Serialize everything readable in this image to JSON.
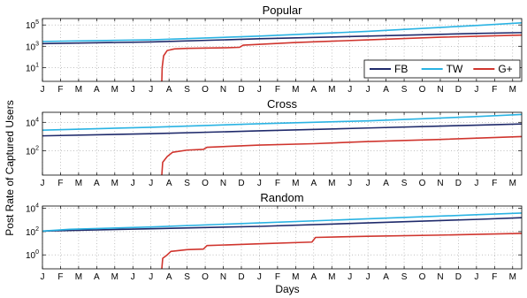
{
  "chart_data": {
    "type": "line",
    "ylabel": "Post Rate of Captured Users",
    "xlabel": "Days",
    "x_tick_labels": [
      "J",
      "F",
      "M",
      "A",
      "M",
      "J",
      "J",
      "A",
      "S",
      "O",
      "N",
      "D",
      "J",
      "F",
      "M",
      "A",
      "M",
      "J",
      "J",
      "A",
      "S",
      "O",
      "N",
      "D",
      "J",
      "F",
      "M"
    ],
    "grid": true,
    "y_scale": "log",
    "legend": {
      "placement": "bottom-right of first panel",
      "entries": [
        "FB",
        "TW",
        "G+"
      ]
    },
    "colors": {
      "FB": "#1f2a6b",
      "TW": "#2ab3e3",
      "G+": "#d0352e"
    },
    "panels": [
      {
        "title": "Popular",
        "ylim_exp": [
          -0.3,
          5.6
        ],
        "y_tick_exps": [
          1,
          3,
          5
        ],
        "y_tick_labels": [
          "10",
          "10",
          "10"
        ],
        "y_tick_exp_labels": [
          "1",
          "3",
          "5"
        ],
        "series": [
          {
            "name": "FB",
            "points": [
              [
                0,
                3.25
              ],
              [
                6,
                3.4
              ],
              [
                12,
                3.7
              ],
              [
                18,
                3.95
              ],
              [
                24,
                4.2
              ],
              [
                26.5,
                4.28
              ]
            ]
          },
          {
            "name": "TW",
            "points": [
              [
                0,
                3.45
              ],
              [
                6,
                3.6
              ],
              [
                12,
                3.95
              ],
              [
                18,
                4.4
              ],
              [
                24,
                4.95
              ],
              [
                26.5,
                5.2
              ]
            ]
          },
          {
            "name": "G+",
            "points": [
              [
                6.6,
                -0.3
              ],
              [
                6.62,
                1.0
              ],
              [
                6.7,
                2.1
              ],
              [
                6.9,
                2.6
              ],
              [
                7.3,
                2.75
              ],
              [
                8,
                2.8
              ],
              [
                10,
                2.85
              ],
              [
                10.9,
                2.9
              ],
              [
                11.1,
                3.1
              ],
              [
                14,
                3.35
              ],
              [
                18,
                3.6
              ],
              [
                22,
                3.85
              ],
              [
                26.5,
                4.05
              ]
            ]
          }
        ]
      },
      {
        "title": "Cross",
        "ylim_exp": [
          0.3,
          4.7
        ],
        "y_tick_exps": [
          2,
          4
        ],
        "y_tick_labels": [
          "10",
          "10"
        ],
        "y_tick_exp_labels": [
          "2",
          "4"
        ],
        "series": [
          {
            "name": "FB",
            "points": [
              [
                0,
                3.05
              ],
              [
                6,
                3.2
              ],
              [
                12,
                3.4
              ],
              [
                18,
                3.6
              ],
              [
                24,
                3.8
              ],
              [
                26.5,
                3.88
              ]
            ]
          },
          {
            "name": "TW",
            "points": [
              [
                0,
                3.45
              ],
              [
                6,
                3.65
              ],
              [
                12,
                3.9
              ],
              [
                18,
                4.1
              ],
              [
                24,
                4.4
              ],
              [
                26.5,
                4.55
              ]
            ]
          },
          {
            "name": "G+",
            "points": [
              [
                6.6,
                0.3
              ],
              [
                6.65,
                1.2
              ],
              [
                6.9,
                1.6
              ],
              [
                7.2,
                1.9
              ],
              [
                8,
                2.05
              ],
              [
                8.9,
                2.1
              ],
              [
                9.1,
                2.25
              ],
              [
                12,
                2.4
              ],
              [
                15,
                2.5
              ],
              [
                18,
                2.65
              ],
              [
                22,
                2.8
              ],
              [
                26.5,
                3.0
              ]
            ]
          }
        ]
      },
      {
        "title": "Random",
        "ylim_exp": [
          -1.2,
          4.2
        ],
        "y_tick_exps": [
          0,
          2,
          4
        ],
        "y_tick_labels": [
          "10",
          "10",
          "10"
        ],
        "y_tick_exp_labels": [
          "0",
          "2",
          "4"
        ],
        "series": [
          {
            "name": "FB",
            "points": [
              [
                0,
                2.05
              ],
              [
                6,
                2.25
              ],
              [
                12,
                2.45
              ],
              [
                18,
                2.75
              ],
              [
                24,
                3.05
              ],
              [
                26.5,
                3.2
              ]
            ]
          },
          {
            "name": "TW",
            "points": [
              [
                0,
                2.05
              ],
              [
                1.5,
                2.2
              ],
              [
                6,
                2.4
              ],
              [
                12,
                2.75
              ],
              [
                18,
                3.1
              ],
              [
                24,
                3.45
              ],
              [
                26.5,
                3.6
              ]
            ]
          },
          {
            "name": "G+",
            "points": [
              [
                6.6,
                -1.2
              ],
              [
                6.65,
                -0.3
              ],
              [
                6.9,
                0.0
              ],
              [
                7.1,
                0.3
              ],
              [
                8,
                0.45
              ],
              [
                8.9,
                0.5
              ],
              [
                9.1,
                0.8
              ],
              [
                12,
                0.95
              ],
              [
                14.9,
                1.1
              ],
              [
                15.1,
                1.5
              ],
              [
                18,
                1.6
              ],
              [
                22,
                1.7
              ],
              [
                26.5,
                1.85
              ]
            ]
          }
        ]
      }
    ]
  }
}
